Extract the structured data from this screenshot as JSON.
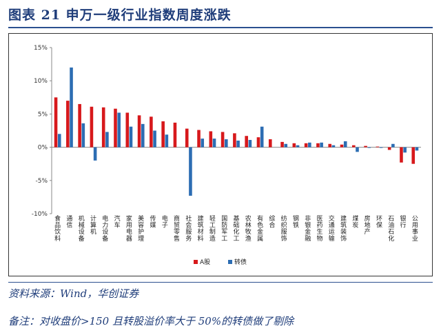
{
  "header": {
    "title": "图表 21  申万一级行业指数周度涨跌"
  },
  "footer": {
    "source": "资料来源：Wind，华创证券",
    "remark": "备注：对收盘价>150 且转股溢价率大于 50%的转债做了剔除"
  },
  "colors": {
    "series_a": "#d7191c",
    "series_b": "#2c6db3",
    "axis": "#888888"
  },
  "chart_data": {
    "type": "bar",
    "title": "",
    "xlabel": "",
    "ylabel": "",
    "ylim": [
      -10,
      15
    ],
    "yticks": [
      -10,
      -5,
      0,
      5,
      10,
      15
    ],
    "ytick_labels": [
      "-10%",
      "-5%",
      "0%",
      "5%",
      "10%",
      "15%"
    ],
    "legend_position": "bottom",
    "categories": [
      "食品饮料",
      "通信",
      "机械设备",
      "计算机",
      "电力设备",
      "汽车",
      "家用电器",
      "美容护理",
      "传媒",
      "电子",
      "商贸零售",
      "社会服务",
      "建筑材料",
      "轻工制造",
      "国防军工",
      "基础化工",
      "农林牧渔",
      "有色金属",
      "综合",
      "纺织服饰",
      "钢铁",
      "非银金融",
      "医药生物",
      "交通运输",
      "建筑装饰",
      "煤炭",
      "房地产",
      "环保",
      "石油石化",
      "银行",
      "公用事业"
    ],
    "series": [
      {
        "name": "A股",
        "values": [
          7.5,
          7.0,
          6.5,
          6.1,
          6.0,
          5.8,
          5.2,
          4.8,
          4.6,
          3.9,
          3.7,
          2.8,
          2.6,
          2.4,
          2.3,
          2.1,
          1.7,
          1.5,
          1.2,
          0.8,
          0.6,
          0.6,
          0.6,
          0.5,
          0.4,
          0.3,
          0.2,
          0.1,
          -0.4,
          -2.3,
          -2.5
        ]
      },
      {
        "name": "转债",
        "values": [
          2.0,
          12.0,
          3.6,
          -2.0,
          2.3,
          5.2,
          3.1,
          3.5,
          2.5,
          1.9,
          0.0,
          -7.3,
          1.3,
          1.3,
          1.2,
          1.0,
          1.1,
          3.1,
          0.0,
          0.5,
          0.3,
          0.7,
          0.7,
          0.3,
          0.9,
          -0.7,
          -0.1,
          -0.1,
          0.5,
          -0.8,
          -0.5
        ]
      }
    ]
  }
}
